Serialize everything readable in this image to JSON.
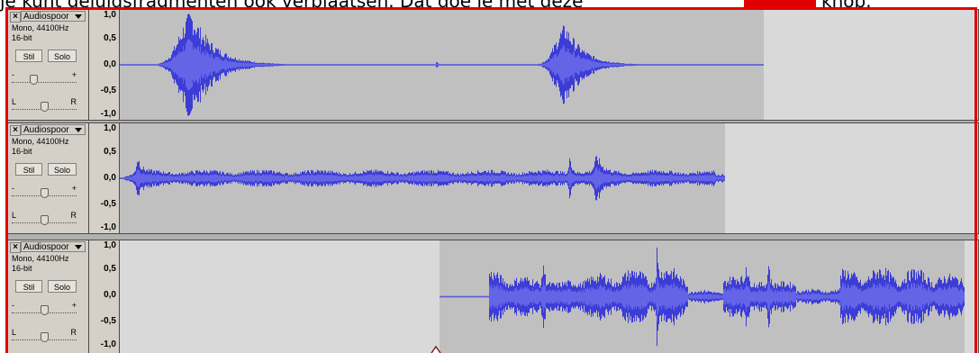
{
  "caption": {
    "text_before": "je kunt geluidsfragmenten ook verplaatsen. Dat doe je met deze",
    "text_after": "knop."
  },
  "tracks": [
    {
      "name": "Audiospoor",
      "format_line1": "Mono, 44100Hz",
      "format_line2": "16-bit",
      "mute_label": "Stil",
      "solo_label": "Solo",
      "gain_minus": "-",
      "gain_plus": "+",
      "pan_left": "L",
      "pan_right": "R",
      "scale": [
        "1,0",
        "0,5",
        "0,0",
        "-0,5",
        "-1,0"
      ]
    },
    {
      "name": "Audiospoor",
      "format_line1": "Mono, 44100Hz",
      "format_line2": "16-bit",
      "mute_label": "Stil",
      "solo_label": "Solo",
      "gain_minus": "-",
      "gain_plus": "+",
      "pan_left": "L",
      "pan_right": "R",
      "scale": [
        "1,0",
        "0,5",
        "0,0",
        "-0,5",
        "-1,0"
      ]
    },
    {
      "name": "Audiospoor",
      "format_line1": "Mono, 44100Hz",
      "format_line2": "16-bit",
      "mute_label": "Stil",
      "solo_label": "Solo",
      "gain_minus": "-",
      "gain_plus": "+",
      "pan_left": "L",
      "pan_right": "R",
      "scale": [
        "1,0",
        "0,5",
        "0,0",
        "-0,5",
        "-1,0"
      ]
    }
  ],
  "colors": {
    "waveform": "#3c3cd6",
    "waveform_rms": "#6464e6",
    "highlight": "#e00000",
    "clip_background": "#c0c0c0",
    "empty_background": "#d9d9d9"
  },
  "icons": {
    "close": "close-icon",
    "dropdown": "chevron-down-icon",
    "cursor": "time-shift-cursor-icon"
  }
}
